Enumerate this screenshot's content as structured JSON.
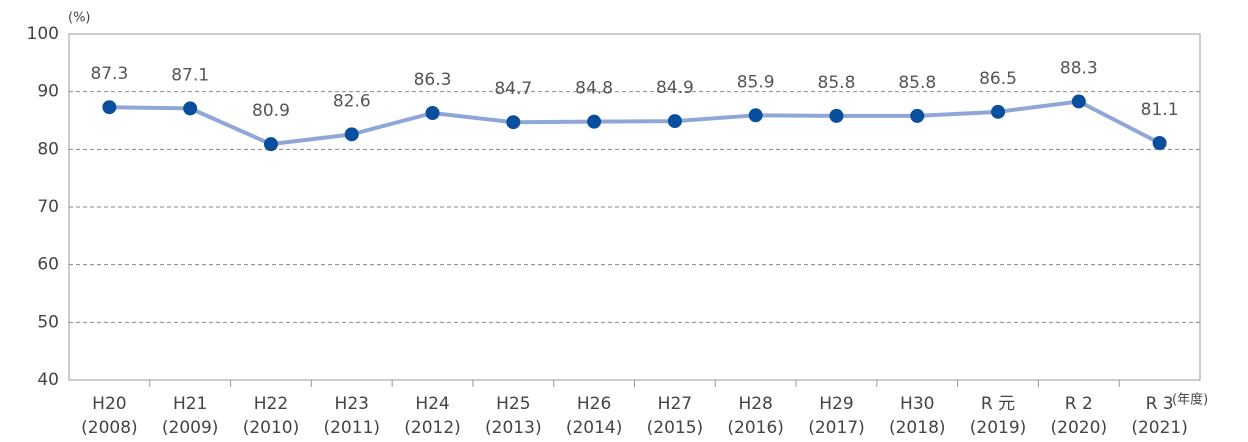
{
  "chart_data": {
    "type": "line",
    "y_unit": "(%)",
    "x_unit": "(年度)",
    "categories": [
      [
        "H20",
        "(2008)"
      ],
      [
        "H21",
        "(2009)"
      ],
      [
        "H22",
        "(2010)"
      ],
      [
        "H23",
        "(2011)"
      ],
      [
        "H24",
        "(2012)"
      ],
      [
        "H25",
        "(2013)"
      ],
      [
        "H26",
        "(2014)"
      ],
      [
        "H27",
        "(2015)"
      ],
      [
        "H28",
        "(2016)"
      ],
      [
        "H29",
        "(2017)"
      ],
      [
        "H30",
        "(2018)"
      ],
      [
        "R 元",
        "(2019)"
      ],
      [
        "R 2",
        "(2020)"
      ],
      [
        "R 3",
        "(2021)"
      ]
    ],
    "values": [
      87.3,
      87.1,
      80.9,
      82.6,
      86.3,
      84.7,
      84.8,
      84.9,
      85.9,
      85.8,
      85.8,
      86.5,
      88.3,
      81.1
    ],
    "line_color": "#8fa7d6",
    "marker_color": "#0a4f9e",
    "ylim": [
      40,
      100
    ],
    "yticks": [
      40,
      50,
      60,
      70,
      80,
      90,
      100
    ],
    "grid": true
  }
}
